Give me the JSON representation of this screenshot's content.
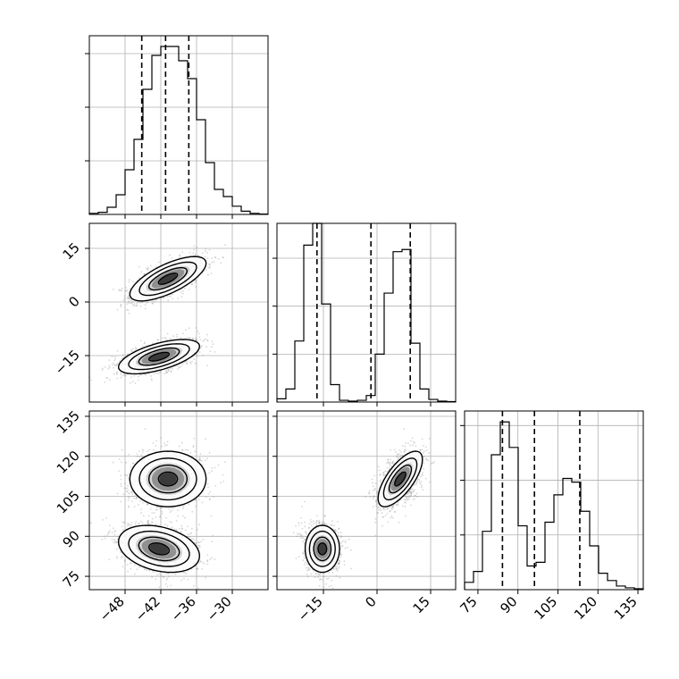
{
  "chart_data": {
    "type": "corner",
    "grid": true,
    "colors": {
      "line": "#000000",
      "grid": "#b0b0b0",
      "scatter": "#8c8c8c",
      "density": [
        "#6e6e6e",
        "#4a4a4a",
        "#111111"
      ]
    },
    "parameters": [
      {
        "range": [
          -54,
          -24
        ],
        "ticks": [
          -48,
          -42,
          -36,
          -30
        ],
        "tick_labels": [
          "−48",
          "−42",
          "−36",
          "−30"
        ],
        "quantiles": [
          -45.2,
          -41.2,
          -37.3
        ],
        "hist": [
          0.006,
          0.012,
          0.04,
          0.11,
          0.25,
          0.42,
          0.7,
          0.89,
          0.94,
          0.94,
          0.86,
          0.76,
          0.53,
          0.29,
          0.14,
          0.1,
          0.046,
          0.018,
          0.006,
          0.002
        ],
        "hist_max": 1.0,
        "hist_ticks": [
          0.3,
          0.6,
          0.9
        ]
      },
      {
        "range": [
          -28,
          22
        ],
        "ticks": [
          -15,
          0,
          15
        ],
        "tick_labels": [
          "−15",
          "0",
          "15"
        ],
        "quantiles": [
          -16.8,
          -1.7,
          9.3
        ],
        "hist": [
          0.015,
          0.06,
          0.28,
          0.72,
          0.82,
          0.45,
          0.08,
          0.008,
          0.004,
          0.008,
          0.03,
          0.22,
          0.5,
          0.69,
          0.7,
          0.27,
          0.06,
          0.012,
          0.004,
          0.002
        ],
        "hist_max": 0.82,
        "hist_ticks": [
          0.22,
          0.44,
          0.66
        ]
      },
      {
        "range": [
          70,
          137
        ],
        "ticks": [
          75,
          90,
          105,
          120,
          135
        ],
        "tick_labels": [
          "75",
          "90",
          "105",
          "120",
          "135"
        ],
        "quantiles": [
          84.2,
          96.2,
          113.2
        ],
        "hist": [
          0.04,
          0.1,
          0.32,
          0.74,
          0.92,
          0.78,
          0.35,
          0.13,
          0.15,
          0.37,
          0.52,
          0.61,
          0.59,
          0.43,
          0.24,
          0.09,
          0.05,
          0.02,
          0.01,
          0.005
        ],
        "hist_max": 0.98,
        "hist_ticks": [
          0.3,
          0.6,
          0.9
        ]
      }
    ],
    "clusters": [
      {
        "weight": 0.5,
        "mean": [
          -40.8,
          6.5,
          111.5
        ],
        "sd": [
          3.2,
          3.1,
          5.2
        ],
        "corr": [
          [
            1,
            0.7,
            0.0
          ],
          [
            0.7,
            1,
            0.7
          ],
          [
            0.0,
            0.7,
            1
          ]
        ]
      },
      {
        "weight": 0.5,
        "mean": [
          -42.3,
          -15.3,
          85.3
        ],
        "sd": [
          3.4,
          2.4,
          4.4
        ],
        "corr": [
          [
            1,
            0.6,
            -0.3
          ],
          [
            0.6,
            1,
            0.0
          ],
          [
            -0.3,
            0.0,
            1
          ]
        ]
      }
    ],
    "contour_levels_sigma": [
      0.5,
      1.0,
      1.5,
      2.0
    ],
    "density_core_sigma": [
      1.15,
      0.85,
      0.45
    ]
  }
}
